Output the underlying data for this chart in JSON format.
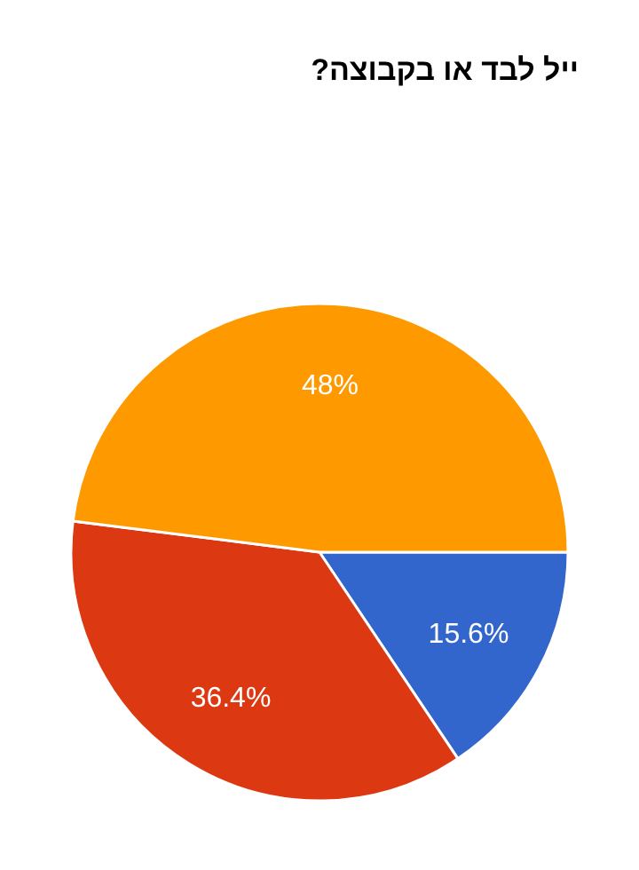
{
  "chart_data": {
    "type": "pie",
    "title": "ייל לבד או בקבוצה?",
    "categories": [
      null,
      null,
      null
    ],
    "values": [
      15.6,
      36.4,
      48
    ],
    "colors": [
      "#3366cc",
      "#dc3912",
      "#ff9900"
    ],
    "value_labels": [
      "15.6%",
      "36.4%",
      "48%"
    ]
  }
}
